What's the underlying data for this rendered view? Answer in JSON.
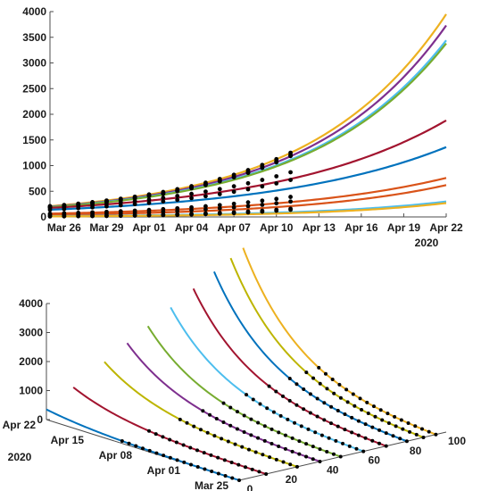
{
  "chart_data": [
    {
      "type": "line",
      "title": "",
      "xlabel": "",
      "ylabel": "",
      "x_tick_labels": [
        "Mar 26",
        "Mar 29",
        "Apr 01",
        "Apr 04",
        "Apr 07",
        "Apr 10",
        "Apr 13",
        "Apr 16",
        "Apr 19",
        "Apr 22"
      ],
      "x_year_label": "2020",
      "x_range": [
        "2020-03-25",
        "2020-04-22"
      ],
      "y_ticks": [
        0,
        500,
        1000,
        1500,
        2000,
        2500,
        3000,
        3500,
        4000
      ],
      "ylim": [
        0,
        4000
      ],
      "grid": false,
      "fit_x": [
        "2020-03-25",
        "2020-04-22"
      ],
      "data_x": [
        "2020-03-25",
        "2020-04-11"
      ],
      "series": [
        {
          "fit": [
            210,
            3950
          ],
          "data": [
            210,
            1250
          ],
          "color": "#EDB120"
        },
        {
          "fit": [
            200,
            3730
          ],
          "data": [
            200,
            1210
          ],
          "color": "#7E2F8E"
        },
        {
          "fit": [
            195,
            3440
          ],
          "data": [
            195,
            1200
          ],
          "color": "#4DBEEE"
        },
        {
          "fit": [
            190,
            3380
          ],
          "data": [
            190,
            1185
          ],
          "color": "#77AC30"
        },
        {
          "fit": [
            175,
            1880
          ],
          "data": [
            175,
            870
          ],
          "color": "#A2142F"
        },
        {
          "fit": [
            140,
            1360
          ],
          "data": [
            140,
            720
          ],
          "color": "#0072BD"
        },
        {
          "fit": [
            65,
            760
          ],
          "data": [
            65,
            390
          ],
          "color": "#D95319"
        },
        {
          "fit": [
            40,
            620
          ],
          "data": [
            40,
            300
          ],
          "color": "#D95319"
        },
        {
          "fit": [
            15,
            300
          ],
          "data": [
            15,
            160
          ],
          "color": "#4DBEEE"
        },
        {
          "fit": [
            10,
            270
          ],
          "data": [
            10,
            140
          ],
          "color": "#EDB120"
        }
      ]
    },
    {
      "type": "line",
      "title": "",
      "projection": "3d",
      "z_ticks": [
        0,
        1000,
        2000,
        3000,
        4000
      ],
      "zlim": [
        0,
        4000
      ],
      "date_ticks": [
        "Mar 25",
        "Apr 01",
        "Apr 08",
        "Apr 15",
        "Apr 22"
      ],
      "date_year_label": "2020",
      "index_ticks": [
        0,
        20,
        40,
        60,
        80,
        100
      ],
      "grid": false,
      "series": [
        {
          "depth": 0,
          "color": "#0072BD"
        },
        {
          "depth": 13,
          "color": "#A2142F"
        },
        {
          "depth": 28,
          "color": "#BDB500"
        },
        {
          "depth": 39,
          "color": "#7E2F8E"
        },
        {
          "depth": 49,
          "color": "#77AC30"
        },
        {
          "depth": 60,
          "color": "#4DBEEE"
        },
        {
          "depth": 71,
          "color": "#A2142F"
        },
        {
          "depth": 81,
          "color": "#0072BD"
        },
        {
          "depth": 89,
          "color": "#BDB500"
        },
        {
          "depth": 95,
          "color": "#EDB120"
        }
      ]
    }
  ]
}
